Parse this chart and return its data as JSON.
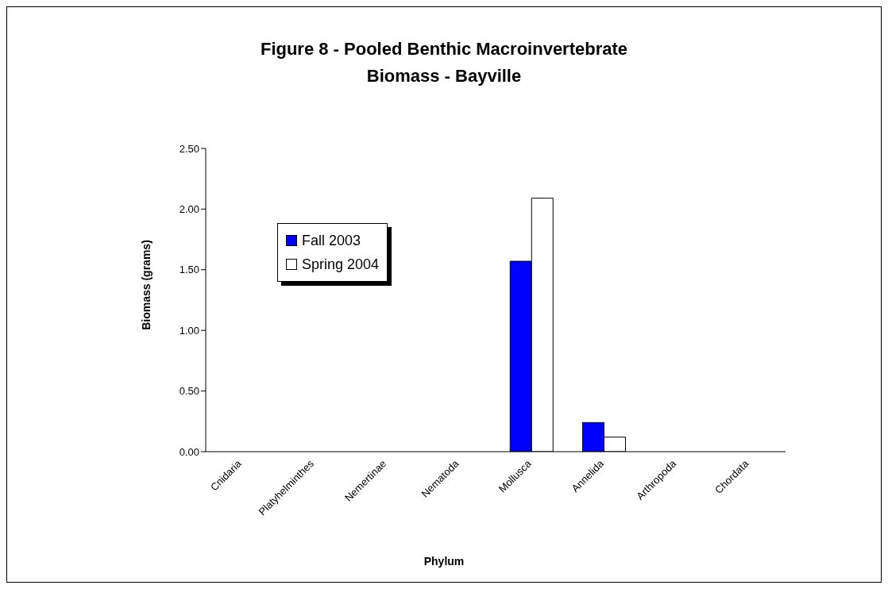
{
  "chart_data": {
    "type": "bar",
    "title": "Figure 8 - Pooled Benthic Macroinvertebrate Biomass - Bayville",
    "xlabel": "Phylum",
    "ylabel": "Biomass (grams)",
    "categories": [
      "Cnidaria",
      "Platyhelminthes",
      "Nemertinae",
      "Nematoda",
      "Mollusca",
      "Annelida",
      "Arthropoda",
      "Chordata"
    ],
    "series": [
      {
        "name": "Fall 2003",
        "color": "#0000ff",
        "values": [
          0,
          0,
          0,
          0,
          1.57,
          0.24,
          0,
          0
        ]
      },
      {
        "name": "Spring 2004",
        "color": "#ffffff",
        "values": [
          0,
          0,
          0,
          0,
          2.09,
          0.12,
          0,
          0
        ]
      }
    ],
    "ylim": [
      0,
      2.5
    ],
    "yticks": [
      {
        "value": 0,
        "label": "0.00"
      },
      {
        "value": 0.5,
        "label": "0.50"
      },
      {
        "value": 1,
        "label": "1.00"
      },
      {
        "value": 1.5,
        "label": "1.50"
      },
      {
        "value": 2,
        "label": "2.00"
      },
      {
        "value": 2.5,
        "label": "2.50"
      }
    ],
    "grid": false,
    "legend": "top left"
  }
}
